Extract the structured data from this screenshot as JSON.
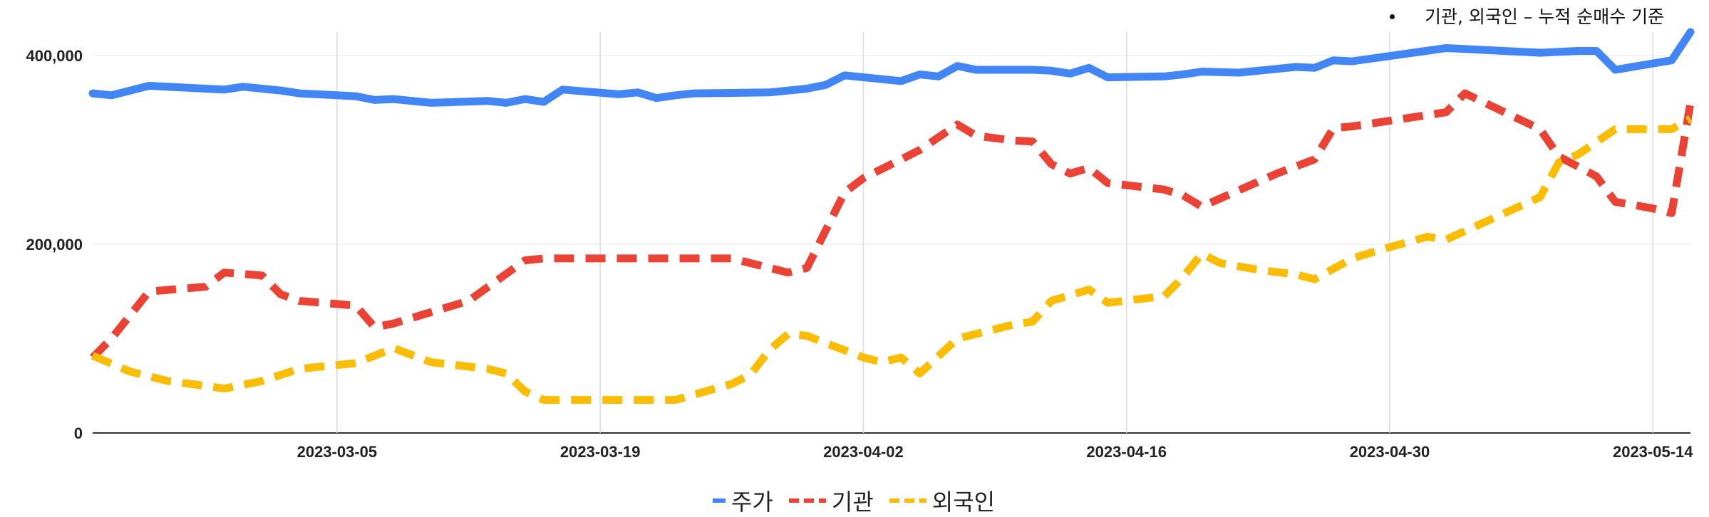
{
  "note": "기관, 외국인 – 누적 순매수 기준",
  "chart_data": {
    "type": "line",
    "title": "",
    "xlabel": "",
    "ylabel": "",
    "x_range": [
      "2023-02-20",
      "2023-05-16"
    ],
    "ylim": [
      0,
      425000
    ],
    "y_ticks": [
      0,
      200000,
      400000
    ],
    "y_tick_labels": [
      "0",
      "200,000",
      "400,000"
    ],
    "x_ticks": [
      "2023-03-05",
      "2023-03-19",
      "2023-04-02",
      "2023-04-16",
      "2023-04-30",
      "2023-05-14"
    ],
    "grid": "vertical",
    "legend": "bottom",
    "series": [
      {
        "name": "주가",
        "color": "#4285f4",
        "dash": "solid",
        "points": [
          [
            "2023-02-20",
            360000
          ],
          [
            "2023-02-21",
            358000
          ],
          [
            "2023-02-23",
            368000
          ],
          [
            "2023-02-26",
            365000
          ],
          [
            "2023-02-27",
            364000
          ],
          [
            "2023-02-28",
            367000
          ],
          [
            "2023-03-02",
            363000
          ],
          [
            "2023-03-03",
            360000
          ],
          [
            "2023-03-06",
            357000
          ],
          [
            "2023-03-07",
            353000
          ],
          [
            "2023-03-08",
            354000
          ],
          [
            "2023-03-10",
            350000
          ],
          [
            "2023-03-13",
            352000
          ],
          [
            "2023-03-14",
            350000
          ],
          [
            "2023-03-15",
            354000
          ],
          [
            "2023-03-16",
            351000
          ],
          [
            "2023-03-17",
            364000
          ],
          [
            "2023-03-20",
            359000
          ],
          [
            "2023-03-21",
            361000
          ],
          [
            "2023-03-22",
            355000
          ],
          [
            "2023-03-23",
            358000
          ],
          [
            "2023-03-24",
            360000
          ],
          [
            "2023-03-28",
            361000
          ],
          [
            "2023-03-30",
            365000
          ],
          [
            "2023-03-31",
            369000
          ],
          [
            "2023-04-01",
            379000
          ],
          [
            "2023-04-03",
            375000
          ],
          [
            "2023-04-04",
            373000
          ],
          [
            "2023-04-05",
            380000
          ],
          [
            "2023-04-06",
            378000
          ],
          [
            "2023-04-07",
            389000
          ],
          [
            "2023-04-08",
            385000
          ],
          [
            "2023-04-11",
            385000
          ],
          [
            "2023-04-12",
            384000
          ],
          [
            "2023-04-13",
            381000
          ],
          [
            "2023-04-14",
            387000
          ],
          [
            "2023-04-15",
            377000
          ],
          [
            "2023-04-18",
            378000
          ],
          [
            "2023-04-19",
            380000
          ],
          [
            "2023-04-20",
            383000
          ],
          [
            "2023-04-22",
            382000
          ],
          [
            "2023-04-24",
            386000
          ],
          [
            "2023-04-25",
            388000
          ],
          [
            "2023-04-26",
            387000
          ],
          [
            "2023-04-27",
            395000
          ],
          [
            "2023-04-28",
            394000
          ],
          [
            "2023-05-03",
            408000
          ],
          [
            "2023-05-08",
            403000
          ],
          [
            "2023-05-10",
            405000
          ],
          [
            "2023-05-11",
            405000
          ],
          [
            "2023-05-12",
            385000
          ],
          [
            "2023-05-15",
            395000
          ],
          [
            "2023-05-16",
            425000
          ]
        ]
      },
      {
        "name": "기관",
        "color": "#ea4335",
        "dash": "dashed",
        "points": [
          [
            "2023-02-20",
            80000
          ],
          [
            "2023-02-21",
            100000
          ],
          [
            "2023-02-23",
            150000
          ],
          [
            "2023-02-26",
            155000
          ],
          [
            "2023-02-27",
            170000
          ],
          [
            "2023-03-01",
            167000
          ],
          [
            "2023-03-02",
            147000
          ],
          [
            "2023-03-03",
            140000
          ],
          [
            "2023-03-06",
            135000
          ],
          [
            "2023-03-07",
            112000
          ],
          [
            "2023-03-08",
            116000
          ],
          [
            "2023-03-12",
            140000
          ],
          [
            "2023-03-15",
            183000
          ],
          [
            "2023-03-16",
            185000
          ],
          [
            "2023-03-26",
            185000
          ],
          [
            "2023-03-28",
            175000
          ],
          [
            "2023-03-29",
            170000
          ],
          [
            "2023-03-30",
            175000
          ],
          [
            "2023-04-01",
            255000
          ],
          [
            "2023-04-02",
            270000
          ],
          [
            "2023-04-05",
            300000
          ],
          [
            "2023-04-07",
            327000
          ],
          [
            "2023-04-08",
            315000
          ],
          [
            "2023-04-10",
            310000
          ],
          [
            "2023-04-11",
            309000
          ],
          [
            "2023-04-12",
            285000
          ],
          [
            "2023-04-13",
            275000
          ],
          [
            "2023-04-14",
            281000
          ],
          [
            "2023-04-15",
            265000
          ],
          [
            "2023-04-18",
            258000
          ],
          [
            "2023-04-19",
            252000
          ],
          [
            "2023-04-20",
            240000
          ],
          [
            "2023-04-24",
            275000
          ],
          [
            "2023-04-26",
            290000
          ],
          [
            "2023-04-27",
            323000
          ],
          [
            "2023-04-28",
            325000
          ],
          [
            "2023-05-03",
            340000
          ],
          [
            "2023-05-04",
            360000
          ],
          [
            "2023-05-08",
            322000
          ],
          [
            "2023-05-09",
            293000
          ],
          [
            "2023-05-11",
            272000
          ],
          [
            "2023-05-12",
            245000
          ],
          [
            "2023-05-14",
            238000
          ],
          [
            "2023-05-15",
            233000
          ],
          [
            "2023-05-16",
            350000
          ]
        ]
      },
      {
        "name": "외국인",
        "color": "#fbbc04",
        "dash": "dashed",
        "points": [
          [
            "2023-02-20",
            82000
          ],
          [
            "2023-02-22",
            65000
          ],
          [
            "2023-02-24",
            55000
          ],
          [
            "2023-02-26",
            50000
          ],
          [
            "2023-02-27",
            47000
          ],
          [
            "2023-03-01",
            55000
          ],
          [
            "2023-03-03",
            68000
          ],
          [
            "2023-03-06",
            74000
          ],
          [
            "2023-03-08",
            90000
          ],
          [
            "2023-03-10",
            75000
          ],
          [
            "2023-03-13",
            68000
          ],
          [
            "2023-03-14",
            63000
          ],
          [
            "2023-03-15",
            44000
          ],
          [
            "2023-03-16",
            35000
          ],
          [
            "2023-03-23",
            35000
          ],
          [
            "2023-03-26",
            52000
          ],
          [
            "2023-03-27",
            62000
          ],
          [
            "2023-03-28",
            88000
          ],
          [
            "2023-03-29",
            105000
          ],
          [
            "2023-03-30",
            103000
          ],
          [
            "2023-04-02",
            80000
          ],
          [
            "2023-04-03",
            75000
          ],
          [
            "2023-04-04",
            80000
          ],
          [
            "2023-04-05",
            63000
          ],
          [
            "2023-04-07",
            100000
          ],
          [
            "2023-04-09",
            110000
          ],
          [
            "2023-04-10",
            115000
          ],
          [
            "2023-04-11",
            118000
          ],
          [
            "2023-04-12",
            140000
          ],
          [
            "2023-04-14",
            152000
          ],
          [
            "2023-04-15",
            138000
          ],
          [
            "2023-04-18",
            145000
          ],
          [
            "2023-04-19",
            165000
          ],
          [
            "2023-04-20",
            190000
          ],
          [
            "2023-04-21",
            180000
          ],
          [
            "2023-04-23",
            173000
          ],
          [
            "2023-04-25",
            168000
          ],
          [
            "2023-04-26",
            163000
          ],
          [
            "2023-04-28",
            185000
          ],
          [
            "2023-04-30",
            197000
          ],
          [
            "2023-05-02",
            208000
          ],
          [
            "2023-05-03",
            205000
          ],
          [
            "2023-05-08",
            250000
          ],
          [
            "2023-05-09",
            287000
          ],
          [
            "2023-05-10",
            295000
          ],
          [
            "2023-05-12",
            322000
          ],
          [
            "2023-05-15",
            322000
          ],
          [
            "2023-05-16",
            333000
          ]
        ]
      }
    ]
  }
}
